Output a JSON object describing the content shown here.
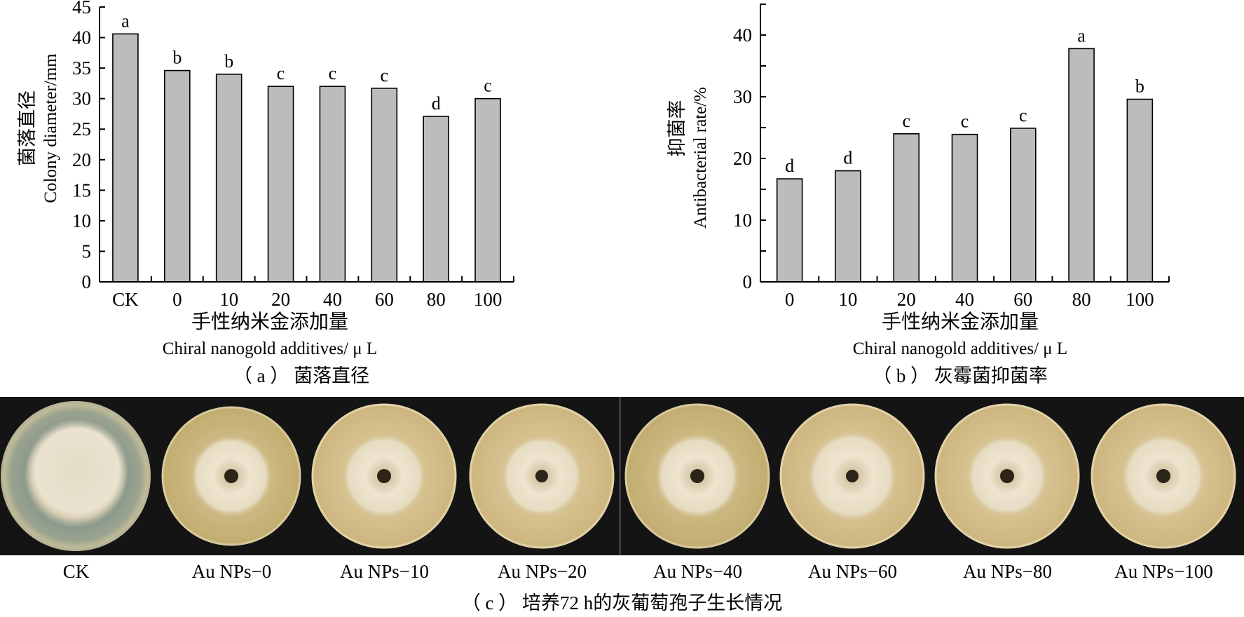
{
  "chart_data": [
    {
      "type": "bar",
      "caption": "（ a ）  菌落直径",
      "ylabel_cn": "菌落直径",
      "ylabel": "Colony diameter/mm",
      "xlabel_cn": "手性纳米金添加量",
      "xlabel": "Chiral nanogold additives/ μ L",
      "categories": [
        "CK",
        "0",
        "10",
        "20",
        "40",
        "60",
        "80",
        "100"
      ],
      "values": [
        40.6,
        34.6,
        34.0,
        32.0,
        32.0,
        31.7,
        27.1,
        30.0
      ],
      "letters": [
        "a",
        "b",
        "b",
        "c",
        "c",
        "c",
        "d",
        "c"
      ],
      "ylim": [
        0,
        45
      ],
      "yticks": [
        0,
        5,
        10,
        15,
        20,
        25,
        30,
        35,
        40,
        45
      ],
      "bar_color": "#bcbcbc"
    },
    {
      "type": "bar",
      "caption": "（ b ）  灰霉菌抑菌率",
      "ylabel_cn": "抑菌率",
      "ylabel": "Antibacterial rate/%",
      "xlabel_cn": "手性纳米金添加量",
      "xlabel": "Chiral nanogold additives/ μ L",
      "categories": [
        "0",
        "10",
        "20",
        "40",
        "60",
        "80",
        "100"
      ],
      "values": [
        16.7,
        18.0,
        24.0,
        23.9,
        24.9,
        37.8,
        29.6
      ],
      "letters": [
        "d",
        "d",
        "c",
        "c",
        "c",
        "a",
        "b"
      ],
      "ylim": [
        0,
        45
      ],
      "yticks": [
        0,
        10,
        20,
        30,
        40
      ],
      "bar_color": "#bcbcbc"
    }
  ],
  "plates": {
    "labels": [
      "CK",
      "Au NPs−0",
      "Au NPs−10",
      "Au NPs−20",
      "Au NPs−40",
      "Au NPs−60",
      "Au NPs−80",
      "Au NPs−100"
    ],
    "caption": "（ c ）  培养72 h的灰葡萄孢子生长情况"
  }
}
